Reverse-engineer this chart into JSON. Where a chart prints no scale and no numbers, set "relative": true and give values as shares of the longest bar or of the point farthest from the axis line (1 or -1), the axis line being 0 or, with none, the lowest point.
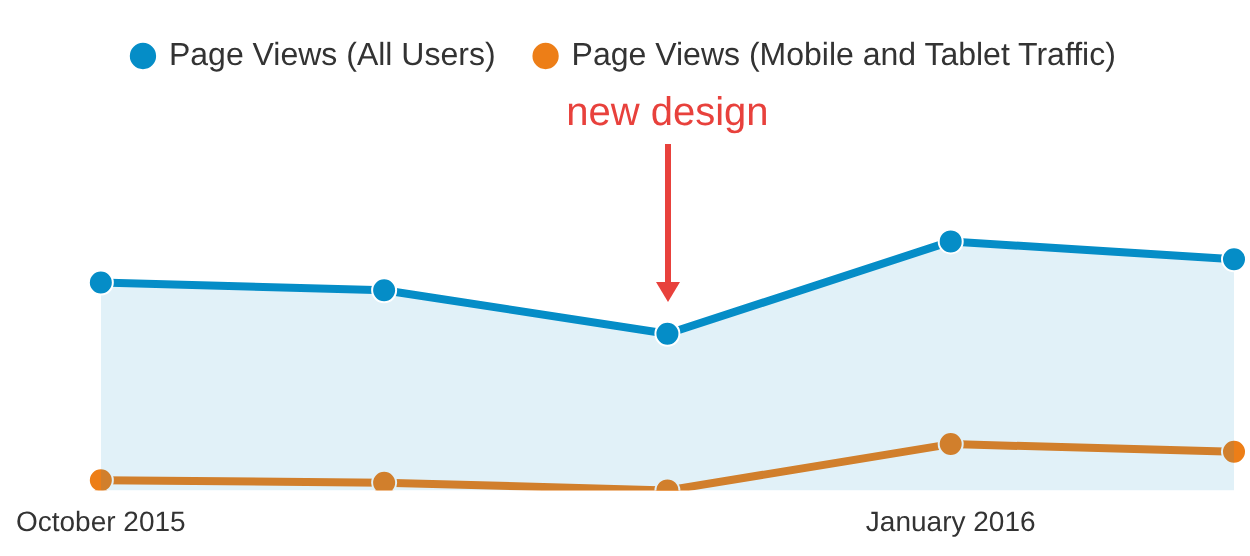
{
  "chart_data": {
    "type": "line",
    "relative": true,
    "categories": [
      "October 2015",
      null,
      null,
      "January 2016",
      null
    ],
    "series": [
      {
        "name": "Page Views (All Users)",
        "type": "area",
        "color": "#058dc7",
        "values": [
          0.835,
          0.804,
          0.629,
          1,
          0.928
        ]
      },
      {
        "name": "Page Views (Mobile and Tablet Traffic)",
        "type": "line",
        "color": "#ed7e17",
        "values": [
          0.041,
          0.031,
          0,
          0.186,
          0.155
        ]
      }
    ],
    "annotations": [
      "new design"
    ],
    "legend": "top",
    "marker": "circle",
    "grid": false
  }
}
